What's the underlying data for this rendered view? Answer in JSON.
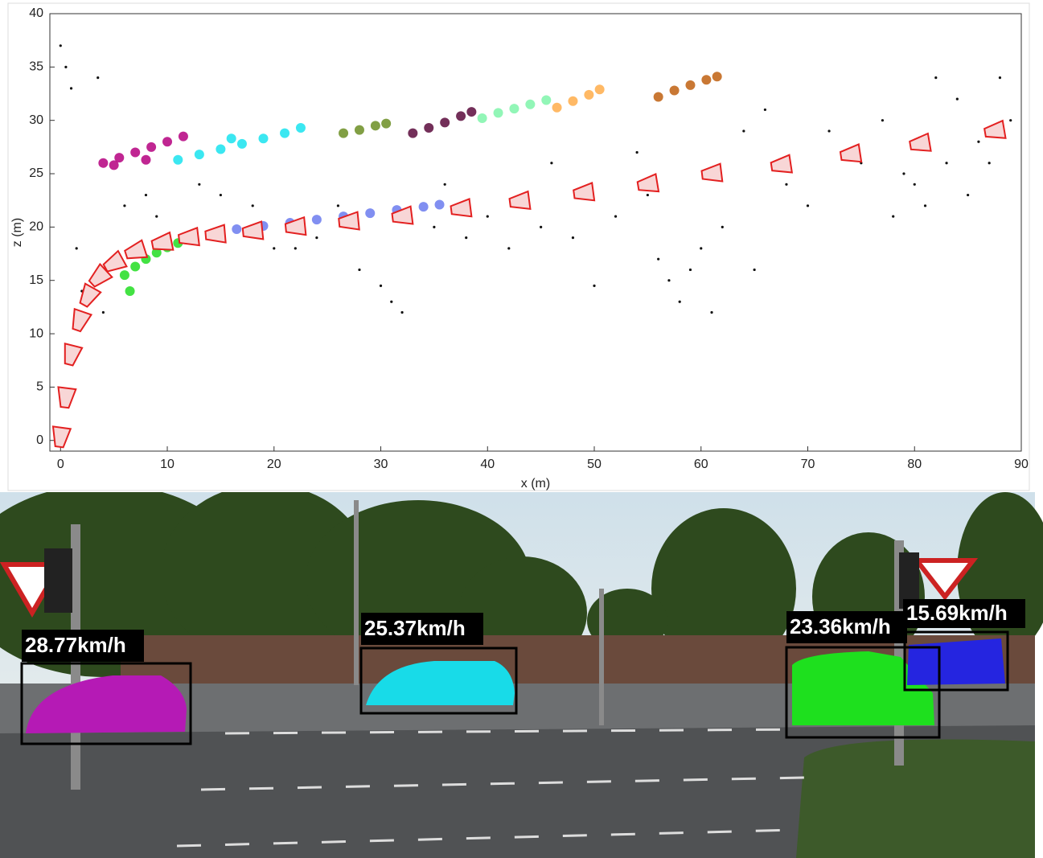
{
  "chart_data": {
    "type": "scatter",
    "xlabel": "x (m)",
    "ylabel": "z (m)",
    "xlim": [
      -1,
      90
    ],
    "ylim": [
      -1,
      40
    ],
    "xticks": [
      0,
      10,
      20,
      30,
      40,
      50,
      60,
      70,
      80,
      90
    ],
    "yticks": [
      0,
      5,
      10,
      15,
      20,
      25,
      30,
      35,
      40
    ],
    "series": [
      {
        "color": "#b5007f",
        "x": [
          4,
          5.5,
          7,
          8.5,
          10,
          11.5,
          5,
          8
        ],
        "values": [
          26,
          26.5,
          27,
          27.5,
          28,
          28.5,
          25.8,
          26.3
        ]
      },
      {
        "color": "#19e3ee",
        "x": [
          11,
          13,
          15,
          17,
          19,
          21,
          22.5,
          16
        ],
        "values": [
          26.3,
          26.8,
          27.3,
          27.8,
          28.3,
          28.8,
          29.3,
          28.3
        ]
      },
      {
        "color": "#6b8e23",
        "x": [
          26.5,
          28,
          29.5,
          30.5
        ],
        "values": [
          28.8,
          29.1,
          29.5,
          29.7
        ]
      },
      {
        "color": "#5a0a3c",
        "x": [
          33,
          34.5,
          36,
          37.5,
          38.5
        ],
        "values": [
          28.8,
          29.3,
          29.8,
          30.4,
          30.8
        ]
      },
      {
        "color": "#7ff5aa",
        "x": [
          39.5,
          41,
          42.5,
          44,
          45.5
        ],
        "values": [
          30.2,
          30.7,
          31.1,
          31.5,
          31.9
        ]
      },
      {
        "color": "#ffad4a",
        "x": [
          46.5,
          48,
          49.5,
          50.5
        ],
        "values": [
          31.2,
          31.8,
          32.4,
          32.9
        ]
      },
      {
        "color": "#c06010",
        "x": [
          56,
          57.5,
          59,
          60.5,
          61.5
        ],
        "values": [
          32.2,
          32.8,
          33.3,
          33.8,
          34.1
        ]
      },
      {
        "color": "#6b7bef",
        "x": [
          16.5,
          19,
          21.5,
          24,
          26.5,
          29,
          31.5,
          34,
          35.5
        ],
        "values": [
          19.8,
          20.1,
          20.4,
          20.7,
          21,
          21.3,
          21.6,
          21.9,
          22.1
        ]
      },
      {
        "color": "#22dd22",
        "x": [
          6,
          7,
          8,
          9,
          10,
          11,
          12,
          6.5
        ],
        "values": [
          15.5,
          16.3,
          17,
          17.6,
          18.1,
          18.5,
          18.9,
          14
        ]
      },
      {
        "color": "#111111",
        "x": [
          0,
          0.5,
          1,
          1.5,
          2,
          3.5,
          4,
          6,
          8,
          13,
          15,
          18,
          20,
          24,
          28,
          30,
          31,
          32,
          35,
          38,
          40,
          42,
          45,
          48,
          50,
          52,
          55,
          56,
          57,
          58,
          59,
          60,
          61,
          62,
          65,
          68,
          70,
          72,
          75,
          78,
          80,
          82,
          84,
          86,
          88,
          89,
          85,
          83,
          81,
          79,
          77,
          87,
          66,
          64,
          54,
          46,
          36,
          26,
          22,
          9
        ],
        "values": [
          37,
          35,
          33,
          18,
          14,
          34,
          12,
          22,
          23,
          24,
          23,
          22,
          18,
          19,
          16,
          14.5,
          13,
          12,
          20,
          19,
          21,
          18,
          20,
          19,
          14.5,
          21,
          23,
          17,
          15,
          13,
          16,
          18,
          12,
          20,
          16,
          24,
          22,
          29,
          26,
          21,
          24,
          34,
          32,
          28,
          34,
          30,
          23,
          26,
          22,
          25,
          30,
          26,
          31,
          29,
          27,
          26,
          24,
          22,
          18,
          21
        ]
      }
    ],
    "camera": {
      "color": "#e32020",
      "x": [
        0,
        0.5,
        1,
        1.8,
        2.6,
        3.6,
        5,
        7,
        9.5,
        12,
        14.5,
        18,
        22,
        27,
        32,
        37.5,
        43,
        49,
        55,
        61,
        67.5,
        74,
        80.5,
        87.5
      ],
      "values": [
        0.3,
        4,
        8,
        11.2,
        13.5,
        15.3,
        16.6,
        17.7,
        18.5,
        19,
        19.3,
        19.6,
        20,
        20.5,
        21,
        21.7,
        22.4,
        23.2,
        24,
        25,
        25.8,
        26.8,
        27.8,
        29
      ]
    }
  },
  "image": {
    "labels": [
      "28.77km/h",
      "25.37km/h",
      "23.36km/h",
      "15.69km/h"
    ]
  }
}
